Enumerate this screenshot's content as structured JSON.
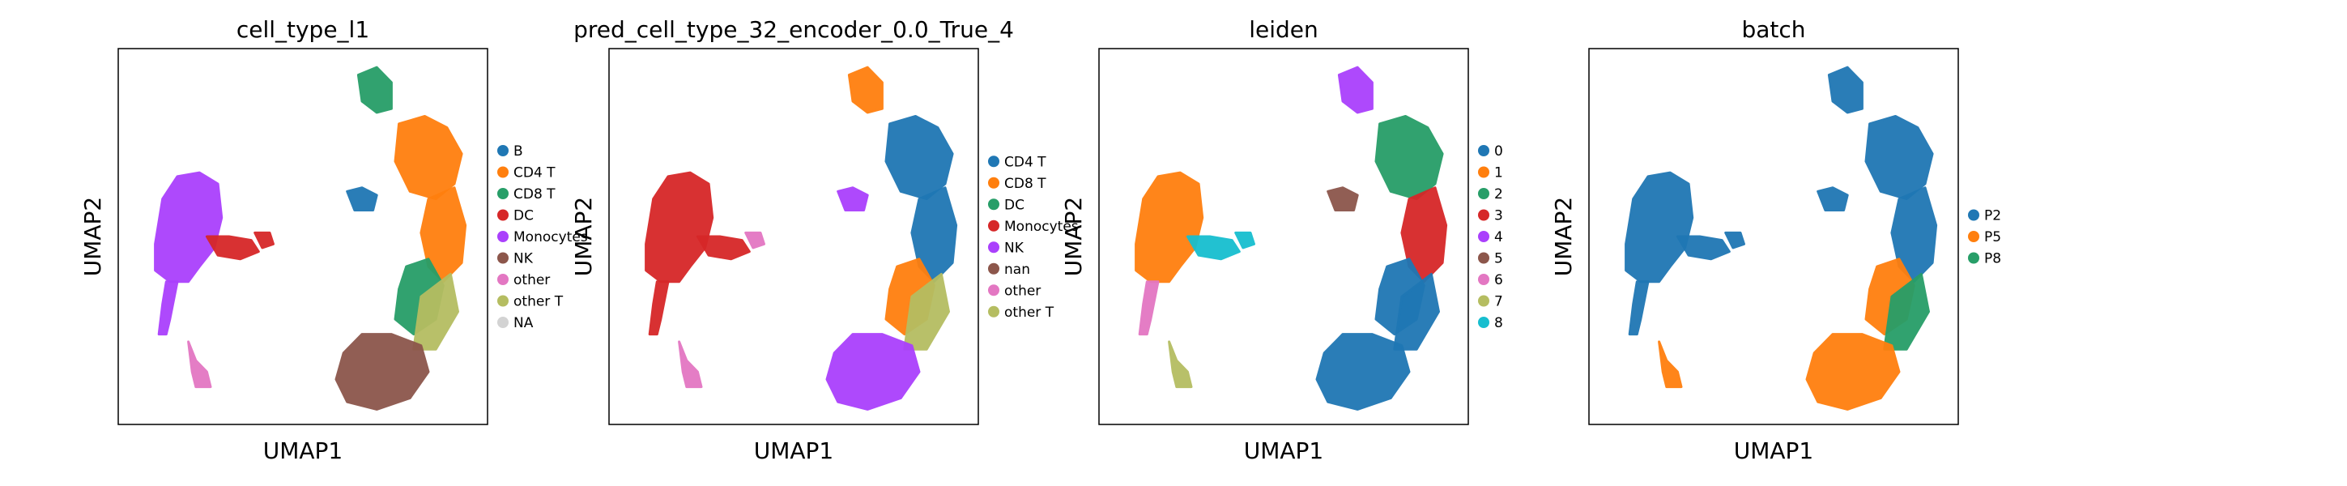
{
  "chart_data": [
    {
      "type": "scatter",
      "title": "cell_type_l1",
      "xlabel": "UMAP1",
      "ylabel": "UMAP2",
      "grid": false,
      "legend_position": "right",
      "legend": [
        {
          "name": "B",
          "color": "#1f77b4"
        },
        {
          "name": "CD4 T",
          "color": "#ff7f0e"
        },
        {
          "name": "CD8 T",
          "color": "#279e68"
        },
        {
          "name": "DC",
          "color": "#d62728"
        },
        {
          "name": "Monocytes",
          "color": "#aa40fc"
        },
        {
          "name": "NK",
          "color": "#8c564b"
        },
        {
          "name": "other",
          "color": "#e377c2"
        },
        {
          "name": "other T",
          "color": "#b5bd61"
        },
        {
          "name": "NA",
          "color": "#d3d3d3"
        }
      ],
      "clusters": [
        {
          "region": "left_main",
          "series": "Monocytes"
        },
        {
          "region": "left_tail_bottom",
          "series": "Monocytes"
        },
        {
          "region": "left_arm",
          "series": "DC"
        },
        {
          "region": "left_arm_tip",
          "series": "DC"
        },
        {
          "region": "left_bottom_small",
          "series": "other"
        },
        {
          "region": "right_top",
          "series": "CD8 T"
        },
        {
          "region": "right_b_blob",
          "series": "B"
        },
        {
          "region": "right_upper_right",
          "series": "CD4 T"
        },
        {
          "region": "right_mid",
          "series": "CD4 T"
        },
        {
          "region": "right_mid_lower",
          "series": "CD8 T"
        },
        {
          "region": "right_lower_mix",
          "series": "other T"
        },
        {
          "region": "right_bottom",
          "series": "NK"
        }
      ]
    },
    {
      "type": "scatter",
      "title": "pred_cell_type_32_encoder_0.0_True_4",
      "xlabel": "UMAP1",
      "ylabel": "UMAP2",
      "grid": false,
      "legend_position": "right",
      "legend": [
        {
          "name": "CD4 T",
          "color": "#1f77b4"
        },
        {
          "name": "CD8 T",
          "color": "#ff7f0e"
        },
        {
          "name": "DC",
          "color": "#279e68"
        },
        {
          "name": "Monocytes",
          "color": "#d62728"
        },
        {
          "name": "NK",
          "color": "#aa40fc"
        },
        {
          "name": "nan",
          "color": "#8c564b"
        },
        {
          "name": "other",
          "color": "#e377c2"
        },
        {
          "name": "other T",
          "color": "#b5bd61"
        }
      ],
      "clusters": [
        {
          "region": "left_main",
          "series": "Monocytes"
        },
        {
          "region": "left_tail_bottom",
          "series": "Monocytes"
        },
        {
          "region": "left_arm",
          "series": "Monocytes"
        },
        {
          "region": "left_arm_tip",
          "series": "other"
        },
        {
          "region": "left_bottom_small",
          "series": "other"
        },
        {
          "region": "right_top",
          "series": "CD8 T"
        },
        {
          "region": "right_b_blob",
          "series": "NK"
        },
        {
          "region": "right_upper_right",
          "series": "CD4 T"
        },
        {
          "region": "right_mid",
          "series": "CD4 T"
        },
        {
          "region": "right_mid_lower",
          "series": "CD8 T"
        },
        {
          "region": "right_lower_mix",
          "series": "other T"
        },
        {
          "region": "right_bottom",
          "series": "NK"
        }
      ]
    },
    {
      "type": "scatter",
      "title": "leiden",
      "xlabel": "UMAP1",
      "ylabel": "UMAP2",
      "grid": false,
      "legend_position": "right",
      "legend": [
        {
          "name": "0",
          "color": "#1f77b4"
        },
        {
          "name": "1",
          "color": "#ff7f0e"
        },
        {
          "name": "2",
          "color": "#279e68"
        },
        {
          "name": "3",
          "color": "#d62728"
        },
        {
          "name": "4",
          "color": "#aa40fc"
        },
        {
          "name": "5",
          "color": "#8c564b"
        },
        {
          "name": "6",
          "color": "#e377c2"
        },
        {
          "name": "7",
          "color": "#b5bd61"
        },
        {
          "name": "8",
          "color": "#17becf"
        }
      ],
      "clusters": [
        {
          "region": "left_main",
          "series": "1"
        },
        {
          "region": "left_tail_bottom",
          "series": "6"
        },
        {
          "region": "left_arm",
          "series": "8"
        },
        {
          "region": "left_arm_tip",
          "series": "8"
        },
        {
          "region": "left_bottom_small",
          "series": "7"
        },
        {
          "region": "right_top",
          "series": "4"
        },
        {
          "region": "right_b_blob",
          "series": "5"
        },
        {
          "region": "right_upper_right",
          "series": "2"
        },
        {
          "region": "right_mid",
          "series": "3"
        },
        {
          "region": "right_mid_lower",
          "series": "0"
        },
        {
          "region": "right_lower_mix",
          "series": "0"
        },
        {
          "region": "right_bottom",
          "series": "0"
        }
      ]
    },
    {
      "type": "scatter",
      "title": "batch",
      "xlabel": "UMAP1",
      "ylabel": "UMAP2",
      "grid": false,
      "legend_position": "right",
      "legend": [
        {
          "name": "P2",
          "color": "#1f77b4"
        },
        {
          "name": "P5",
          "color": "#ff7f0e"
        },
        {
          "name": "P8",
          "color": "#279e68"
        }
      ],
      "clusters": [
        {
          "region": "left_main",
          "series": "P2"
        },
        {
          "region": "left_tail_bottom",
          "series": "P2"
        },
        {
          "region": "left_arm",
          "series": "P2"
        },
        {
          "region": "left_arm_tip",
          "series": "P2"
        },
        {
          "region": "left_bottom_small",
          "series": "P5"
        },
        {
          "region": "right_top",
          "series": "P2"
        },
        {
          "region": "right_b_blob",
          "series": "P2"
        },
        {
          "region": "right_upper_right",
          "series": "P2"
        },
        {
          "region": "right_mid",
          "series": "P2"
        },
        {
          "region": "right_mid_lower",
          "series": "P5"
        },
        {
          "region": "right_lower_mix",
          "series": "P8"
        },
        {
          "region": "right_bottom",
          "series": "P5"
        }
      ]
    }
  ]
}
